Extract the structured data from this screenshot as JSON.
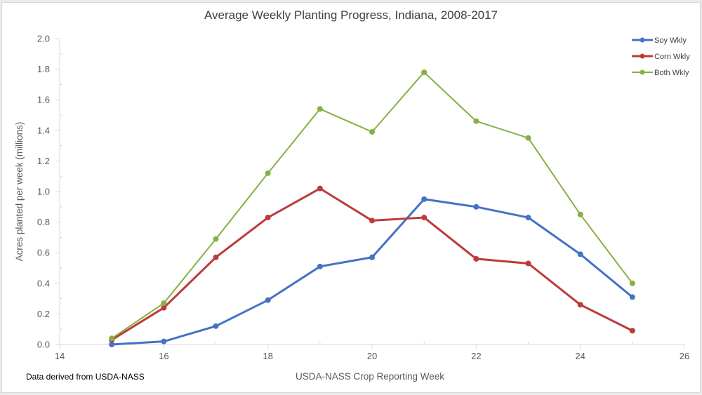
{
  "chart_data": {
    "type": "line",
    "title": "Average Weekly Planting Progress, Indiana, 2008-2017",
    "xlabel": "USDA-NASS Crop Reporting Week",
    "ylabel": "Acres planted per week (millions)",
    "xlim": [
      14,
      26
    ],
    "ylim": [
      0,
      2.0
    ],
    "x_ticks": [
      "14",
      "16",
      "18",
      "20",
      "22",
      "24",
      "26"
    ],
    "y_ticks": [
      "0.0",
      "0.2",
      "0.4",
      "0.6",
      "0.8",
      "1.0",
      "1.2",
      "1.4",
      "1.6",
      "1.8",
      "2.0"
    ],
    "grid": false,
    "legend_position": "top-right",
    "x": [
      15,
      16,
      17,
      18,
      19,
      20,
      21,
      22,
      23,
      24,
      25
    ],
    "series": [
      {
        "name": "Soy Wkly",
        "color": "#4472c4",
        "values": [
          0.0,
          0.02,
          0.12,
          0.29,
          0.51,
          0.57,
          0.95,
          0.9,
          0.83,
          0.59,
          0.31
        ]
      },
      {
        "name": "Corn Wkly",
        "color": "#be3a3a",
        "values": [
          0.03,
          0.24,
          0.57,
          0.83,
          1.02,
          0.81,
          0.83,
          0.56,
          0.53,
          0.26,
          0.09
        ]
      },
      {
        "name": "Both Wkly",
        "color": "#86b043",
        "values": [
          0.04,
          0.27,
          0.69,
          1.12,
          1.54,
          1.39,
          1.78,
          1.46,
          1.35,
          0.85,
          0.4
        ]
      }
    ],
    "annotation": "Data derived from USDA-NASS"
  }
}
